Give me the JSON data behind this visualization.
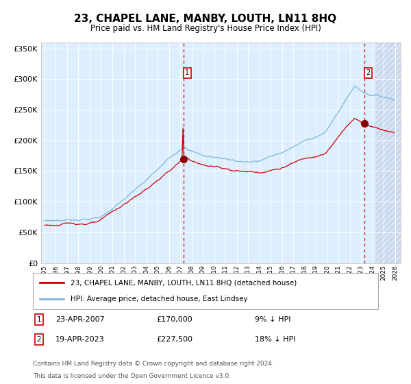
{
  "title": "23, CHAPEL LANE, MANBY, LOUTH, LN11 8HQ",
  "subtitle": "Price paid vs. HM Land Registry's House Price Index (HPI)",
  "sale1_date": "23-APR-2007",
  "sale1_price": 170000,
  "sale1_label": "9% ↓ HPI",
  "sale2_date": "19-APR-2023",
  "sale2_price": 227500,
  "sale2_label": "18% ↓ HPI",
  "legend_line1": "23, CHAPEL LANE, MANBY, LOUTH, LN11 8HQ (detached house)",
  "legend_line2": "HPI: Average price, detached house, East Lindsey",
  "footnote1": "Contains HM Land Registry data © Crown copyright and database right 2024.",
  "footnote2": "This data is licensed under the Open Government Licence v3.0.",
  "hpi_color": "#7ab8d9",
  "price_color": "#cc0000",
  "bg_color": "#ddeeff",
  "future_bg_color": "#c8d8ee",
  "vline_color": "#cc0000",
  "marker_color": "#880000",
  "ylim": [
    0,
    360000
  ],
  "yticks": [
    0,
    50000,
    100000,
    150000,
    200000,
    250000,
    300000,
    350000
  ],
  "xlim_start": 1994.7,
  "xlim_end": 2026.5,
  "future_start": 2024.25,
  "sale1_x": 2007.29,
  "sale2_x": 2023.29
}
